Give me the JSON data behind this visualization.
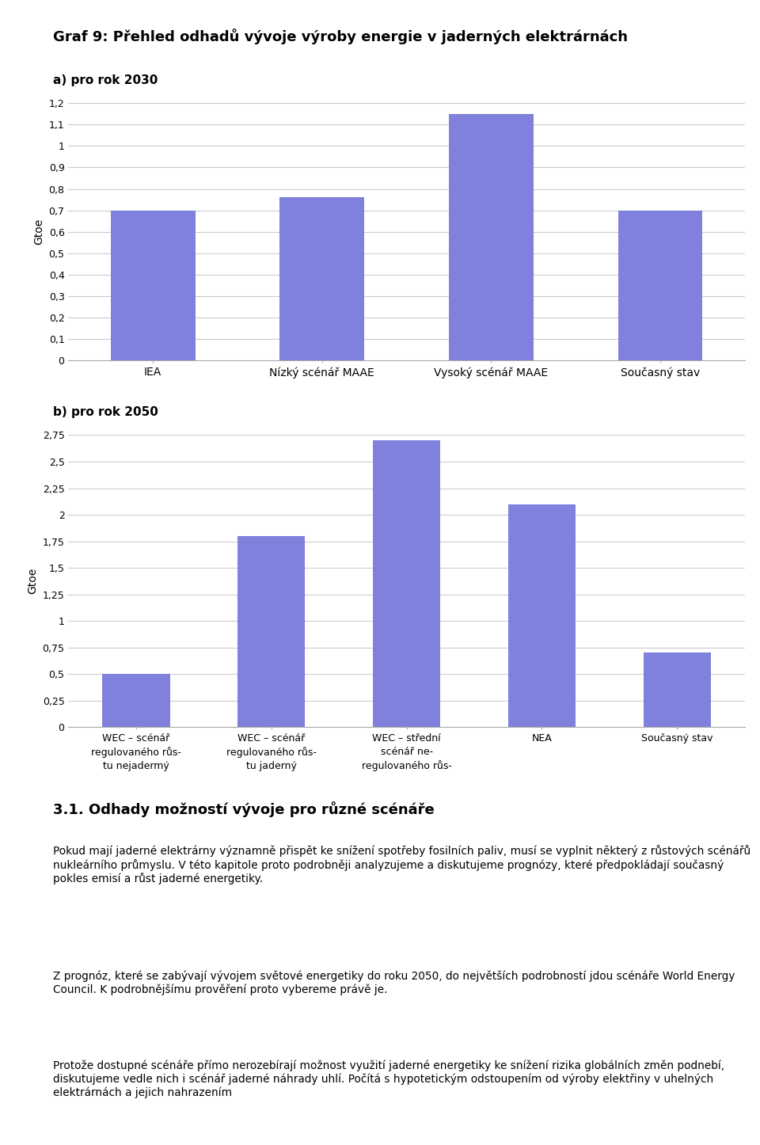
{
  "title": "Graf 9: Přehled odhadů vývoje výroby energie v jaderných elektrárnách",
  "chart_a_subtitle": "a) pro rok 2030",
  "chart_b_subtitle": "b) pro rok 2050",
  "chart_a_categories": [
    "IEA",
    "Nízký scénář MAAE",
    "Vysoký scénář MAAE",
    "Současný stav"
  ],
  "chart_a_values": [
    0.7,
    0.76,
    1.15,
    0.7
  ],
  "chart_a_yticks": [
    0,
    0.1,
    0.2,
    0.3,
    0.4,
    0.5,
    0.6,
    0.7,
    0.8,
    0.9,
    1.0,
    1.1,
    1.2
  ],
  "chart_a_ylim": [
    0,
    1.2
  ],
  "chart_a_ylabel": "Gtoe",
  "chart_b_categories": [
    "WEC – scénář\nregulovaného růs-\ntu nejadermý",
    "WEC – scénář\nregulovaného růs-\ntu jaderný",
    "WEC – střední\nscénář ne-\nregulovaného růs-",
    "NEA",
    "Současný stav"
  ],
  "chart_b_values": [
    0.5,
    1.8,
    2.7,
    2.1,
    0.7
  ],
  "chart_b_yticks": [
    0,
    0.25,
    0.5,
    0.75,
    1.0,
    1.25,
    1.5,
    1.75,
    2.0,
    2.25,
    2.5,
    2.75
  ],
  "chart_b_ylim": [
    0,
    2.75
  ],
  "chart_b_ylabel": "Gtoe",
  "bar_color": "#8080dd",
  "grid_color": "#cccccc",
  "background_color": "#ffffff",
  "section_title": "3.1. Odhady možností vývoje pro různé scénáře",
  "body_paragraphs": [
    "Pokud mají jaderné elektrárny významně přispět ke snížení spotřeby fosilních paliv, musí se vyplnit některý z růstových scénářů nukleárního průmyslu. V této kapitole proto podrobněji analyzujeme a diskutujeme prognózy, které předpokládají současný pokles emisí a růst jaderné energetiky.",
    "Z prognóz, které se zabývají vývojem světové energetiky do roku 2050, do největších podrobností jdou scénáře World Energy Council. K podrobnějšímu prověření proto vybereme právě je.",
    "Protože dostupné scénáře přímo nerozebírají možnost využití jaderné energetiky ke snížení rizika globálních změn podnebí, diskutujeme vedle nich i scénář jaderné náhrady uhlí. Počítá s hypotetickým odstoupením od výroby elektřiny v uhelných elektrárnách a jejich nahrazením"
  ],
  "fig_width": 9.6,
  "fig_height": 14.46,
  "dpi": 100
}
